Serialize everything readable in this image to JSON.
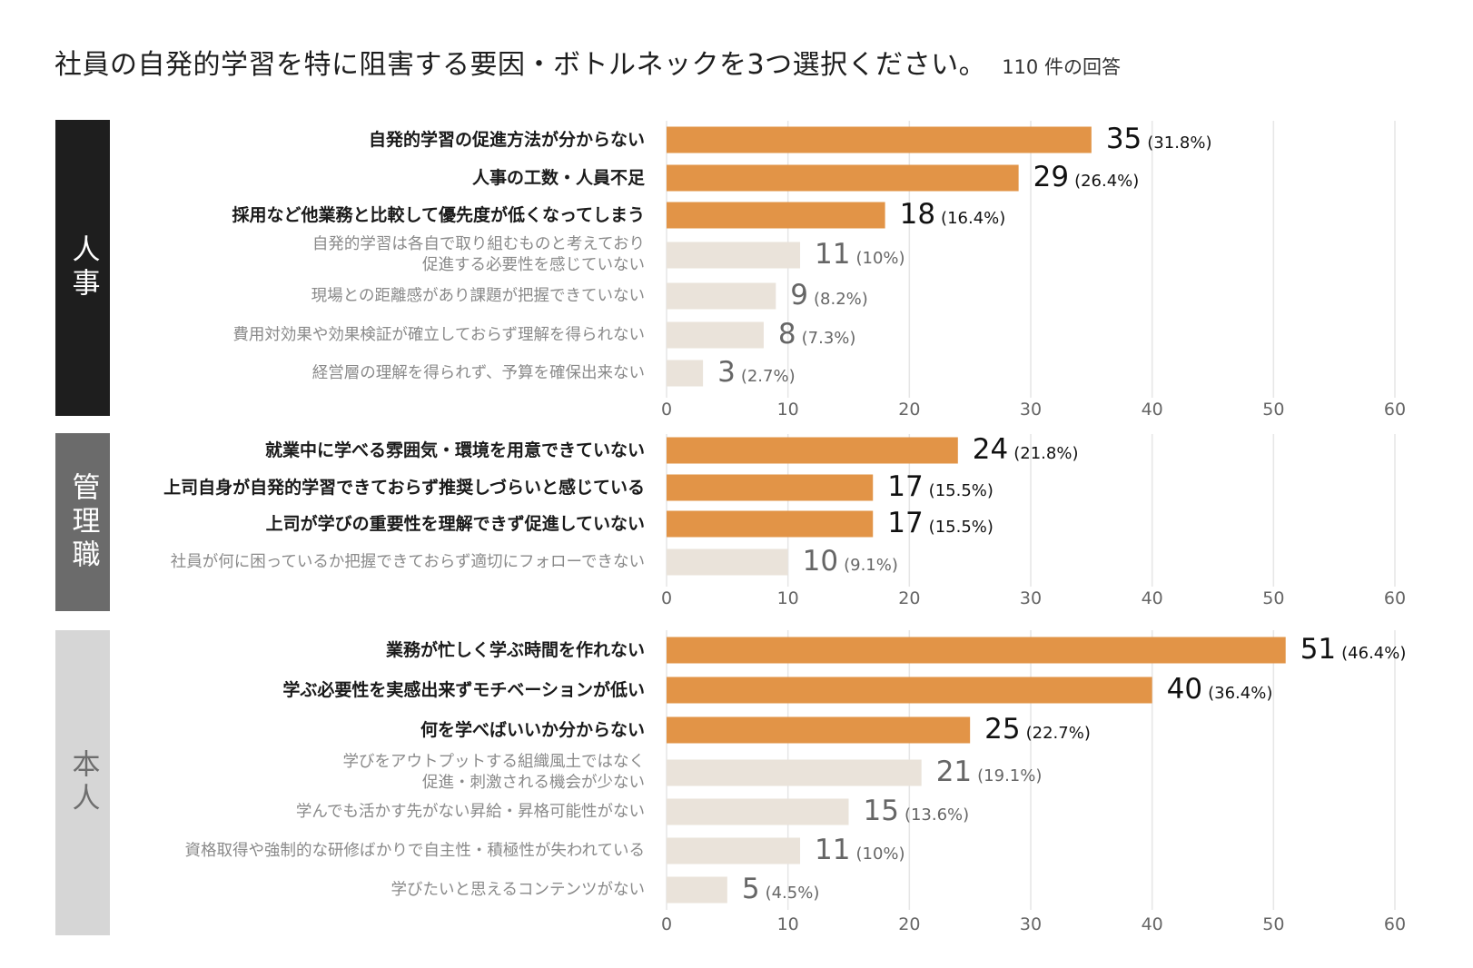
{
  "title": "社員の自発的学習を特に阻害する要因・ボトルネックを3つ選択ください。",
  "response_count": "110 件の回答",
  "colors": {
    "highlight_bar": "#E29447",
    "muted_bar": "#EAE3DA",
    "grid": "#E6E6E6",
    "hr_band": "#1E1E1E",
    "mgr_band": "#6B6B6B",
    "self_band": "#D6D6D6"
  },
  "chart_data": [
    {
      "type": "bar",
      "orientation": "horizontal",
      "group": "人事",
      "band_color": "#1E1E1E",
      "band_text_color": "#FFFFFF",
      "categories": [
        "自発的学習の促進方法が分からない",
        "人事の工数・人員不足",
        "採用など他業務と比較して優先度が低くなってしまう",
        "自発的学習は各自で取り組むものと考えており\n促進する必要性を感じていない",
        "現場との距離感があり課題が把握できていない",
        "費用対効果や効果検証が確立しておらず理解を得られない",
        "経営層の理解を得られず、予算を確保出来ない"
      ],
      "values": [
        35,
        29,
        18,
        11,
        9,
        8,
        3
      ],
      "percent_labels": [
        "(31.8%)",
        "(26.4%)",
        "(16.4%)",
        "(10%)",
        "(8.2%)",
        "(7.3%)",
        "(2.7%)"
      ],
      "highlighted": [
        true,
        true,
        true,
        false,
        false,
        false,
        false
      ],
      "xlim": [
        0,
        60
      ],
      "xticks": [
        "0",
        "10",
        "20",
        "30",
        "40",
        "50",
        "60"
      ]
    },
    {
      "type": "bar",
      "orientation": "horizontal",
      "group": "管理職",
      "band_color": "#6B6B6B",
      "band_text_color": "#FFFFFF",
      "categories": [
        "就業中に学べる雰囲気・環境を用意できていない",
        "上司自身が自発的学習できておらず推奨しづらいと感じている",
        "上司が学びの重要性を理解できず促進していない",
        "社員が何に困っているか把握できておらず適切にフォローできない"
      ],
      "values": [
        24,
        17,
        17,
        10
      ],
      "percent_labels": [
        "(21.8%)",
        "(15.5%)",
        "(15.5%)",
        "(9.1%)"
      ],
      "highlighted": [
        true,
        true,
        true,
        false
      ],
      "xlim": [
        0,
        60
      ],
      "xticks": [
        "0",
        "10",
        "20",
        "30",
        "40",
        "50",
        "60"
      ]
    },
    {
      "type": "bar",
      "orientation": "horizontal",
      "group": "本人",
      "band_color": "#D6D6D6",
      "band_text_color": "#6E6E6E",
      "categories": [
        "業務が忙しく学ぶ時間を作れない",
        "学ぶ必要性を実感出来ずモチベーションが低い",
        "何を学べばいいか分からない",
        "学びをアウトプットする組織風土ではなく\n促進・刺激される機会が少ない",
        "学んでも活かす先がない昇給・昇格可能性がない",
        "資格取得や強制的な研修ばかりで自主性・積極性が失われている",
        "学びたいと思えるコンテンツがない"
      ],
      "values": [
        51,
        40,
        25,
        21,
        15,
        11,
        5
      ],
      "percent_labels": [
        "(46.4%)",
        "(36.4%)",
        "(22.7%)",
        "(19.1%)",
        "(13.6%)",
        "(10%)",
        "(4.5%)"
      ],
      "highlighted": [
        true,
        true,
        true,
        false,
        false,
        false,
        false
      ],
      "xlim": [
        0,
        60
      ],
      "xticks": [
        "0",
        "10",
        "20",
        "30",
        "40",
        "50",
        "60"
      ]
    }
  ]
}
